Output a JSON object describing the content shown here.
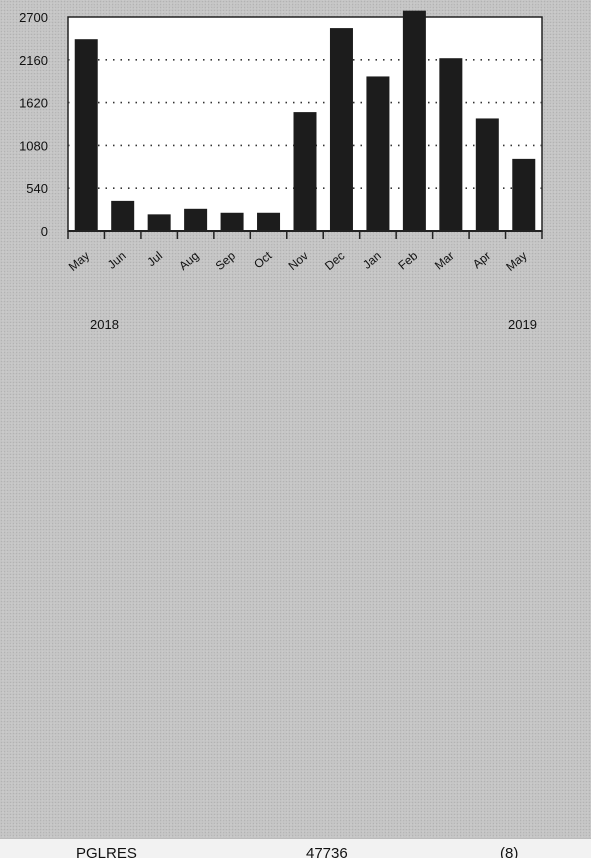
{
  "chart_data": {
    "type": "bar",
    "categories": [
      "May",
      "Jun",
      "Jul",
      "Aug",
      "Sep",
      "Oct",
      "Nov",
      "Dec",
      "Jan",
      "Feb",
      "Mar",
      "Apr",
      "May"
    ],
    "values": [
      2420,
      380,
      210,
      280,
      230,
      230,
      1500,
      2560,
      1950,
      2780,
      2180,
      1420,
      910
    ],
    "ylim": [
      0,
      2700
    ],
    "yticks": [
      0,
      540,
      1080,
      1620,
      2160,
      2700
    ],
    "year_labels": [
      "2018",
      "2019"
    ],
    "grid": "horizontal dotted",
    "bar_color": "#1c1c1c"
  },
  "footer": {
    "left": "PGLRES",
    "center": "47736",
    "right": "(8)"
  }
}
